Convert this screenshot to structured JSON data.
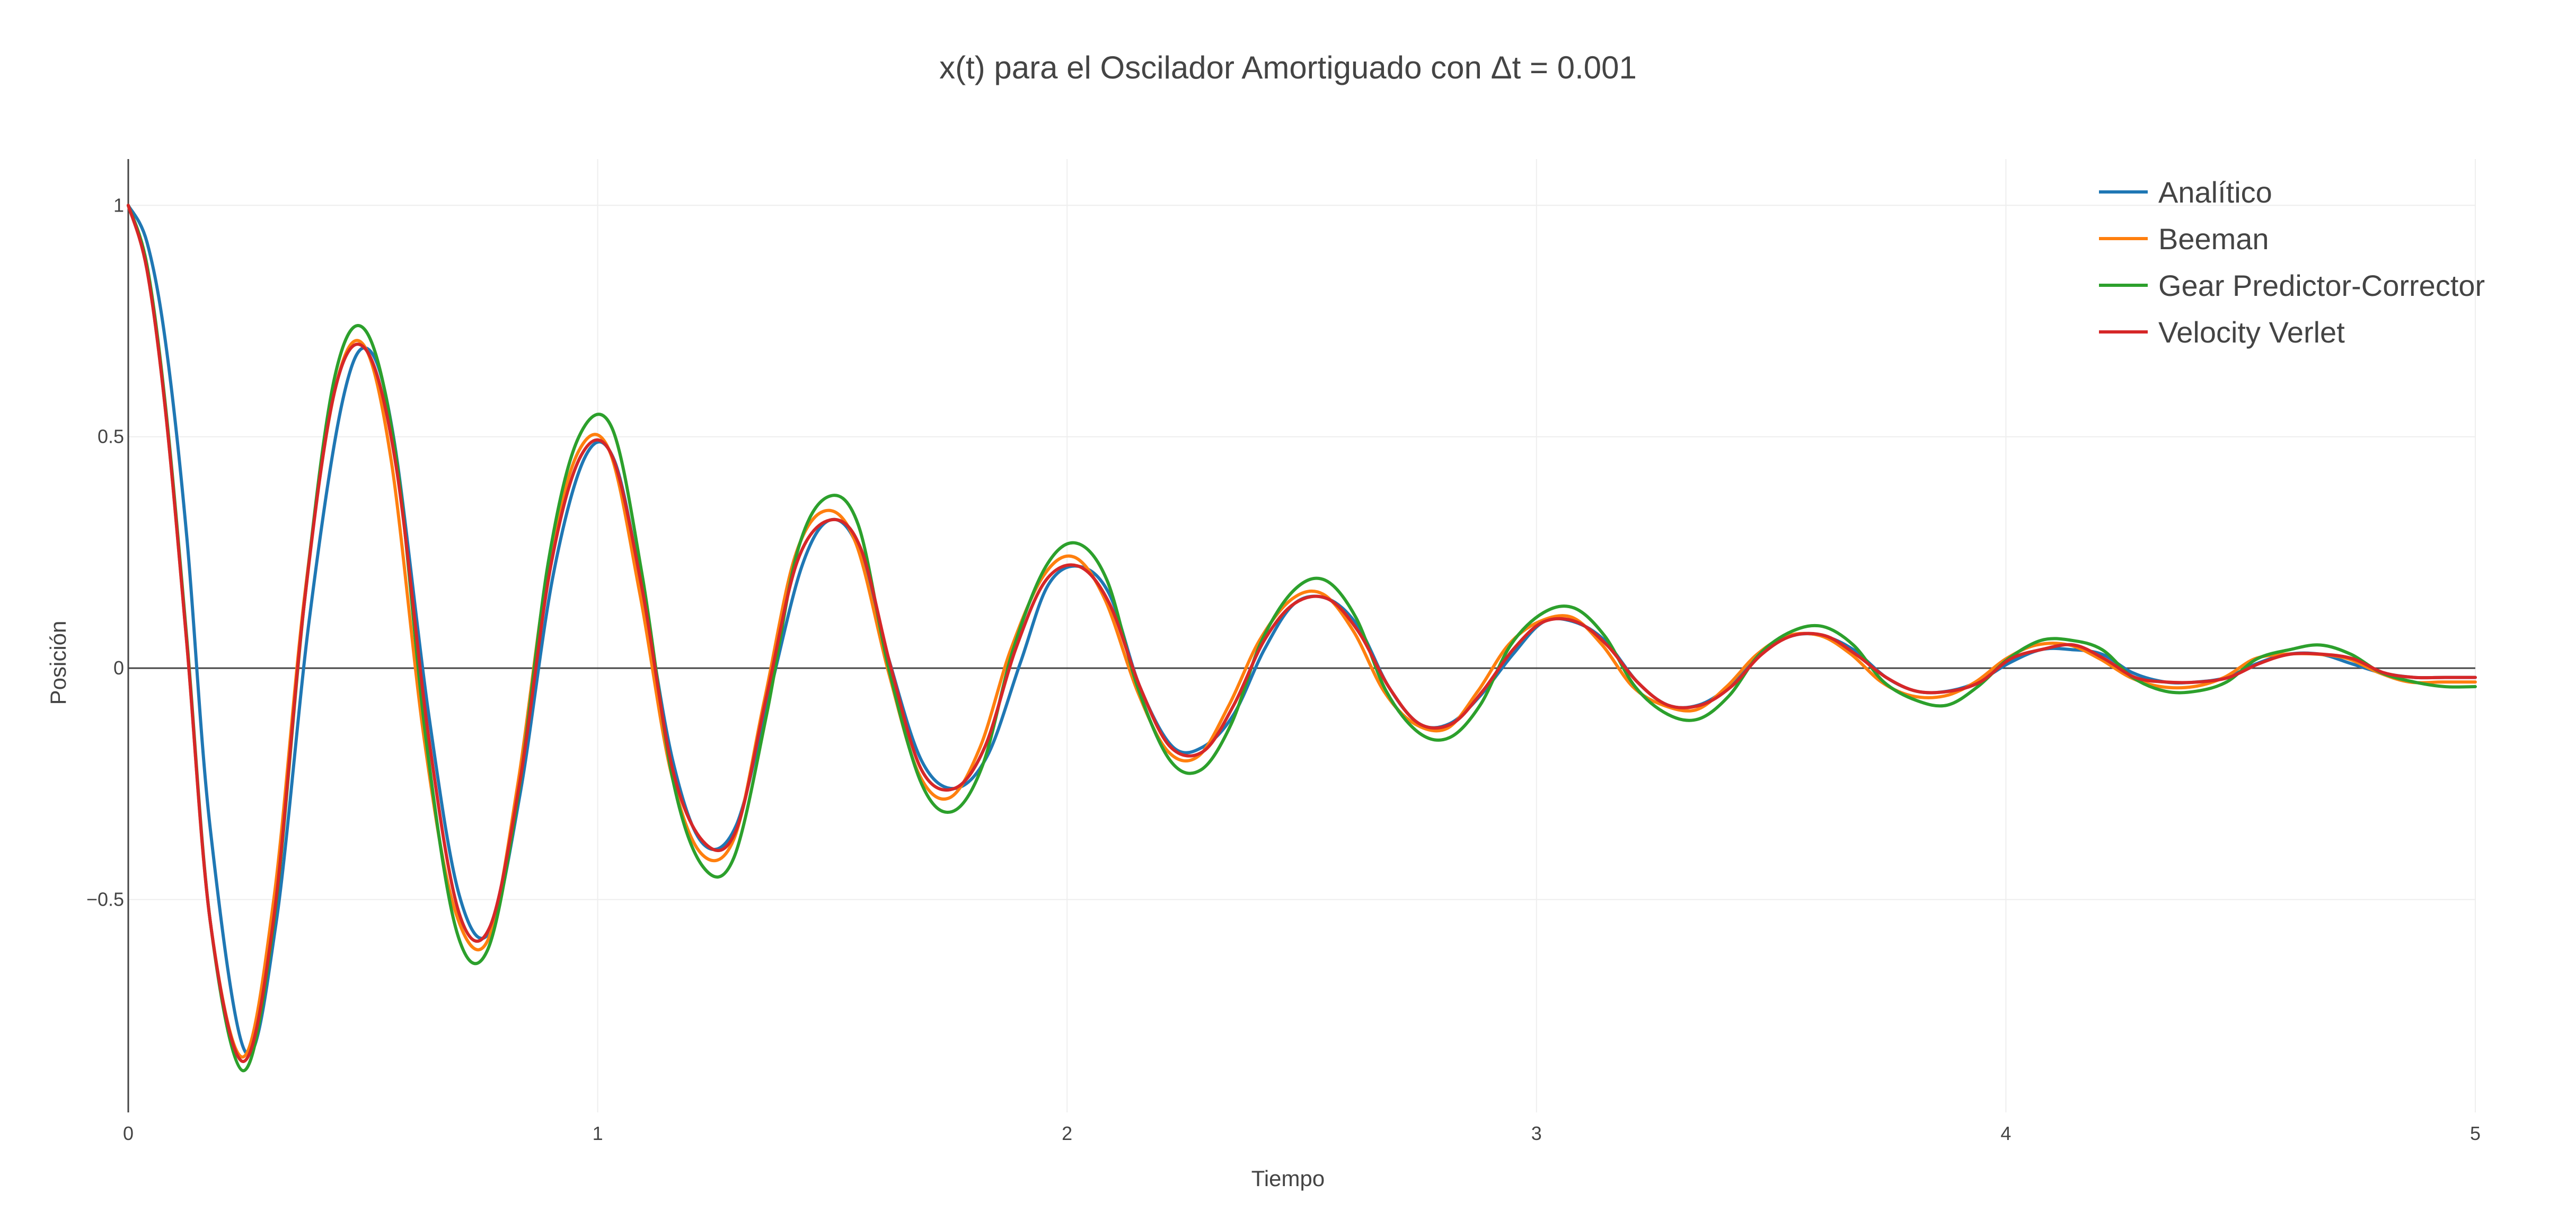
{
  "chart_data": {
    "type": "line",
    "title": "x(t) para el Oscilador Amortiguado con Δt = 0.001",
    "xlabel": "Tiempo",
    "ylabel": "Posición",
    "xlim": [
      0,
      5
    ],
    "ylim": [
      -0.96,
      1.1
    ],
    "x_ticks": [
      0,
      1,
      2,
      3,
      4,
      5
    ],
    "y_ticks": [
      1,
      0.5,
      0,
      -0.5
    ],
    "x_tick_labels": [
      "0",
      "1",
      "2",
      "3",
      "4",
      "5"
    ],
    "y_tick_labels": [
      "1",
      "0.5",
      "0",
      "−0.5"
    ],
    "grid": true,
    "legend_position": "top-right",
    "series": [
      {
        "name": "Analítico",
        "color": "#1f77b4",
        "x": [
          0,
          0.04,
          0.08,
          0.125,
          0.175,
          0.25,
          0.315,
          0.385,
          0.455,
          0.51,
          0.565,
          0.64,
          0.705,
          0.77,
          0.835,
          0.905,
          0.975,
          1.035,
          1.095,
          1.16,
          1.225,
          1.295,
          1.365,
          1.435,
          1.495,
          1.555,
          1.62,
          1.69,
          1.76,
          1.83,
          1.9,
          1.96,
          2.025,
          2.09,
          2.155,
          2.225,
          2.29,
          2.355,
          2.42,
          2.485,
          2.555,
          2.62,
          2.685,
          2.75,
          2.815,
          2.88,
          2.95,
          3.015,
          3.08,
          3.145,
          3.215,
          3.28,
          3.345,
          3.41,
          3.475,
          3.545,
          3.61,
          3.675,
          3.745,
          3.81,
          3.875,
          3.94,
          4.005,
          4.075,
          4.14,
          4.205,
          4.27,
          4.34,
          4.405,
          4.47,
          4.535,
          4.6,
          4.67,
          4.735,
          4.8,
          4.87,
          4.935,
          5
        ],
        "y": [
          1,
          0.92,
          0.7,
          0.28,
          -0.35,
          -0.83,
          -0.55,
          0.1,
          0.57,
          0.69,
          0.5,
          -0.1,
          -0.49,
          -0.57,
          -0.27,
          0.2,
          0.46,
          0.45,
          0.17,
          -0.2,
          -0.38,
          -0.34,
          -0.06,
          0.22,
          0.32,
          0.26,
          0.02,
          -0.2,
          -0.26,
          -0.19,
          0.01,
          0.18,
          0.22,
          0.16,
          -0.04,
          -0.17,
          -0.17,
          -0.1,
          0.04,
          0.14,
          0.15,
          0.09,
          -0.04,
          -0.12,
          -0.12,
          -0.06,
          0.03,
          0.1,
          0.1,
          0.06,
          -0.03,
          -0.08,
          -0.08,
          -0.04,
          0.03,
          0.07,
          0.07,
          0.04,
          -0.02,
          -0.05,
          -0.05,
          -0.03,
          0.01,
          0.04,
          0.04,
          0.03,
          -0.01,
          -0.03,
          -0.03,
          -0.02,
          0.01,
          0.03,
          0.03,
          0.01,
          -0.01,
          -0.02,
          -0.02,
          -0.02
        ]
      },
      {
        "name": "Beeman",
        "color": "#ff7f0e",
        "x": [
          0,
          0.04,
          0.08,
          0.125,
          0.175,
          0.245,
          0.31,
          0.375,
          0.44,
          0.5,
          0.56,
          0.63,
          0.695,
          0.765,
          0.83,
          0.895,
          0.96,
          1.025,
          1.09,
          1.155,
          1.22,
          1.29,
          1.355,
          1.42,
          1.485,
          1.55,
          1.62,
          1.685,
          1.75,
          1.815,
          1.88,
          1.95,
          2.015,
          2.08,
          2.15,
          2.215,
          2.28,
          2.345,
          2.41,
          2.48,
          2.545,
          2.61,
          2.675,
          2.74,
          2.81,
          2.875,
          2.94,
          3.005,
          3.075,
          3.14,
          3.205,
          3.27,
          3.34,
          3.405,
          3.47,
          3.535,
          3.605,
          3.67,
          3.735,
          3.8,
          3.87,
          3.935,
          4,
          4.065,
          4.135,
          4.2,
          4.265,
          4.33,
          4.4,
          4.465,
          4.53,
          4.595,
          4.665,
          4.73,
          4.795,
          4.86,
          4.93,
          5
        ],
        "y": [
          1,
          0.86,
          0.55,
          0.05,
          -0.55,
          -0.84,
          -0.5,
          0.15,
          0.6,
          0.7,
          0.45,
          -0.15,
          -0.52,
          -0.59,
          -0.25,
          0.22,
          0.47,
          0.47,
          0.16,
          -0.22,
          -0.4,
          -0.37,
          -0.07,
          0.24,
          0.34,
          0.27,
          -0.01,
          -0.23,
          -0.28,
          -0.17,
          0.04,
          0.2,
          0.24,
          0.15,
          -0.05,
          -0.18,
          -0.19,
          -0.08,
          0.06,
          0.15,
          0.16,
          0.08,
          -0.05,
          -0.12,
          -0.13,
          -0.05,
          0.05,
          0.1,
          0.11,
          0.05,
          -0.04,
          -0.08,
          -0.09,
          -0.04,
          0.03,
          0.07,
          0.07,
          0.03,
          -0.03,
          -0.06,
          -0.06,
          -0.03,
          0.02,
          0.05,
          0.05,
          0.02,
          -0.02,
          -0.04,
          -0.04,
          -0.02,
          0.02,
          0.03,
          0.03,
          0.02,
          -0.01,
          -0.03,
          -0.03,
          -0.03
        ]
      },
      {
        "name": "Gear Predictor-Corrector",
        "color": "#2ca02c",
        "x": [
          0,
          0.04,
          0.08,
          0.125,
          0.175,
          0.245,
          0.31,
          0.375,
          0.44,
          0.505,
          0.57,
          0.635,
          0.7,
          0.765,
          0.83,
          0.895,
          0.96,
          1.03,
          1.095,
          1.16,
          1.225,
          1.29,
          1.36,
          1.425,
          1.49,
          1.555,
          1.62,
          1.69,
          1.755,
          1.82,
          1.885,
          1.955,
          2.02,
          2.085,
          2.15,
          2.22,
          2.285,
          2.35,
          2.415,
          2.485,
          2.55,
          2.615,
          2.68,
          2.75,
          2.815,
          2.88,
          2.945,
          3.015,
          3.08,
          3.145,
          3.21,
          3.28,
          3.345,
          3.41,
          3.475,
          3.545,
          3.61,
          3.675,
          3.74,
          3.81,
          3.875,
          3.94,
          4.005,
          4.075,
          4.14,
          4.205,
          4.27,
          4.34,
          4.405,
          4.47,
          4.535,
          4.605,
          4.67,
          4.735,
          4.8,
          4.87,
          4.935,
          5
        ],
        "y": [
          1,
          0.87,
          0.56,
          0.06,
          -0.55,
          -0.87,
          -0.55,
          0.14,
          0.63,
          0.73,
          0.46,
          -0.16,
          -0.57,
          -0.61,
          -0.28,
          0.23,
          0.5,
          0.52,
          0.2,
          -0.24,
          -0.43,
          -0.41,
          -0.1,
          0.25,
          0.37,
          0.31,
          0,
          -0.25,
          -0.31,
          -0.21,
          0.04,
          0.22,
          0.27,
          0.19,
          -0.04,
          -0.2,
          -0.22,
          -0.12,
          0.06,
          0.17,
          0.19,
          0.11,
          -0.05,
          -0.14,
          -0.15,
          -0.08,
          0.05,
          0.12,
          0.13,
          0.07,
          -0.04,
          -0.1,
          -0.11,
          -0.06,
          0.03,
          0.08,
          0.09,
          0.05,
          -0.03,
          -0.07,
          -0.08,
          -0.04,
          0.02,
          0.06,
          0.06,
          0.04,
          -0.02,
          -0.05,
          -0.05,
          -0.03,
          0.02,
          0.04,
          0.05,
          0.03,
          -0.01,
          -0.03,
          -0.04,
          -0.04
        ]
      },
      {
        "name": "Velocity Verlet",
        "color": "#d62728",
        "x": [
          0,
          0.04,
          0.08,
          0.125,
          0.175,
          0.245,
          0.31,
          0.375,
          0.44,
          0.505,
          0.57,
          0.64,
          0.705,
          0.77,
          0.835,
          0.9,
          0.965,
          1.03,
          1.095,
          1.16,
          1.23,
          1.295,
          1.36,
          1.425,
          1.495,
          1.56,
          1.625,
          1.69,
          1.76,
          1.825,
          1.89,
          1.955,
          2.025,
          2.09,
          2.155,
          2.22,
          2.29,
          2.355,
          2.42,
          2.485,
          2.555,
          2.62,
          2.685,
          2.75,
          2.82,
          2.885,
          2.95,
          3.015,
          3.085,
          3.15,
          3.215,
          3.28,
          3.35,
          3.415,
          3.48,
          3.545,
          3.615,
          3.68,
          3.745,
          3.81,
          3.88,
          3.945,
          4.01,
          4.075,
          4.145,
          4.21,
          4.275,
          4.34,
          4.41,
          4.475,
          4.54,
          4.605,
          4.675,
          4.74,
          4.805,
          4.87,
          4.935,
          5
        ],
        "y": [
          1,
          0.86,
          0.55,
          0.05,
          -0.55,
          -0.85,
          -0.54,
          0.14,
          0.6,
          0.69,
          0.44,
          -0.15,
          -0.53,
          -0.56,
          -0.24,
          0.22,
          0.46,
          0.46,
          0.17,
          -0.22,
          -0.38,
          -0.35,
          -0.06,
          0.23,
          0.32,
          0.26,
          0,
          -0.22,
          -0.26,
          -0.17,
          0.04,
          0.19,
          0.22,
          0.14,
          -0.04,
          -0.17,
          -0.18,
          -0.08,
          0.06,
          0.14,
          0.15,
          0.08,
          -0.04,
          -0.12,
          -0.12,
          -0.05,
          0.04,
          0.1,
          0.1,
          0.05,
          -0.03,
          -0.08,
          -0.08,
          -0.04,
          0.03,
          0.07,
          0.07,
          0.03,
          -0.02,
          -0.05,
          -0.05,
          -0.03,
          0.02,
          0.04,
          0.05,
          0.02,
          -0.02,
          -0.03,
          -0.03,
          -0.02,
          0.01,
          0.03,
          0.03,
          0.02,
          -0.01,
          -0.02,
          -0.02,
          -0.02
        ]
      }
    ]
  }
}
